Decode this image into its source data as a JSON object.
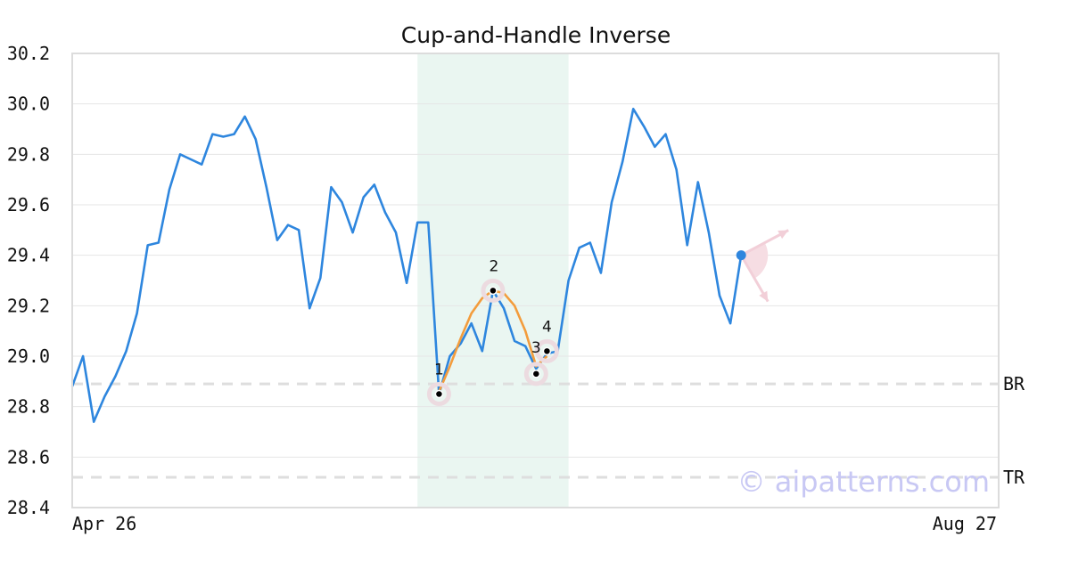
{
  "chart_data": {
    "type": "line",
    "title": "Cup-and-Handle Inverse",
    "xlabel": "",
    "ylabel": "",
    "ylim": [
      28.4,
      30.2
    ],
    "y_ticks": [
      "28.4",
      "28.6",
      "28.8",
      "29.0",
      "29.2",
      "29.4",
      "29.6",
      "29.8",
      "30.0",
      "30.2"
    ],
    "x_tick_labels": [
      "Apr 26",
      "Aug 27"
    ],
    "x_range_days": [
      0,
      123
    ],
    "grid": true,
    "series": [
      {
        "color": "#2e86de",
        "values": [
          28.88,
          29.0,
          28.74,
          28.84,
          28.92,
          29.02,
          29.17,
          29.44,
          29.45,
          29.66,
          29.8,
          29.78,
          29.76,
          29.88,
          29.87,
          29.88,
          29.95,
          29.86,
          29.67,
          29.46,
          29.52,
          29.5,
          29.19,
          29.31,
          29.67,
          29.61,
          29.49,
          29.63,
          29.68,
          29.57,
          29.49,
          29.29,
          29.53,
          29.53,
          28.85,
          29.0,
          29.05,
          29.13,
          29.02,
          29.26,
          29.19,
          29.06,
          29.04,
          28.95,
          29.01,
          29.02,
          29.3,
          29.43,
          29.45,
          29.33,
          29.61,
          29.77,
          29.98,
          29.91,
          29.83,
          29.88,
          29.74,
          29.44,
          29.69,
          29.49,
          29.24,
          29.13,
          29.4
        ]
      },
      {
        "color": "#f39c3c",
        "values": [
          [
            34,
            28.86
          ],
          [
            35,
            28.96
          ],
          [
            36,
            29.07
          ],
          [
            37,
            29.17
          ],
          [
            38,
            29.23
          ],
          [
            39,
            29.26
          ],
          [
            40,
            29.25
          ],
          [
            41,
            29.2
          ],
          [
            42,
            29.1
          ],
          [
            43,
            28.96
          ],
          [
            44,
            29.0
          ]
        ]
      }
    ],
    "highlight_region": {
      "x_from": 32,
      "x_to": 46,
      "color": "#eaf6f1"
    },
    "pattern_points": [
      {
        "label": "1",
        "x": 34,
        "y": 28.85
      },
      {
        "label": "2",
        "x": 39,
        "y": 29.26
      },
      {
        "label": "3",
        "x": 43,
        "y": 28.93
      },
      {
        "label": "4",
        "x": 44,
        "y": 29.02
      }
    ],
    "horizontal_lines": [
      {
        "label": "BR",
        "y": 28.89
      },
      {
        "label": "TR",
        "y": 28.52
      }
    ],
    "last_point": {
      "x": 62,
      "y": 29.4
    },
    "watermark": "© aipatterns.com"
  }
}
